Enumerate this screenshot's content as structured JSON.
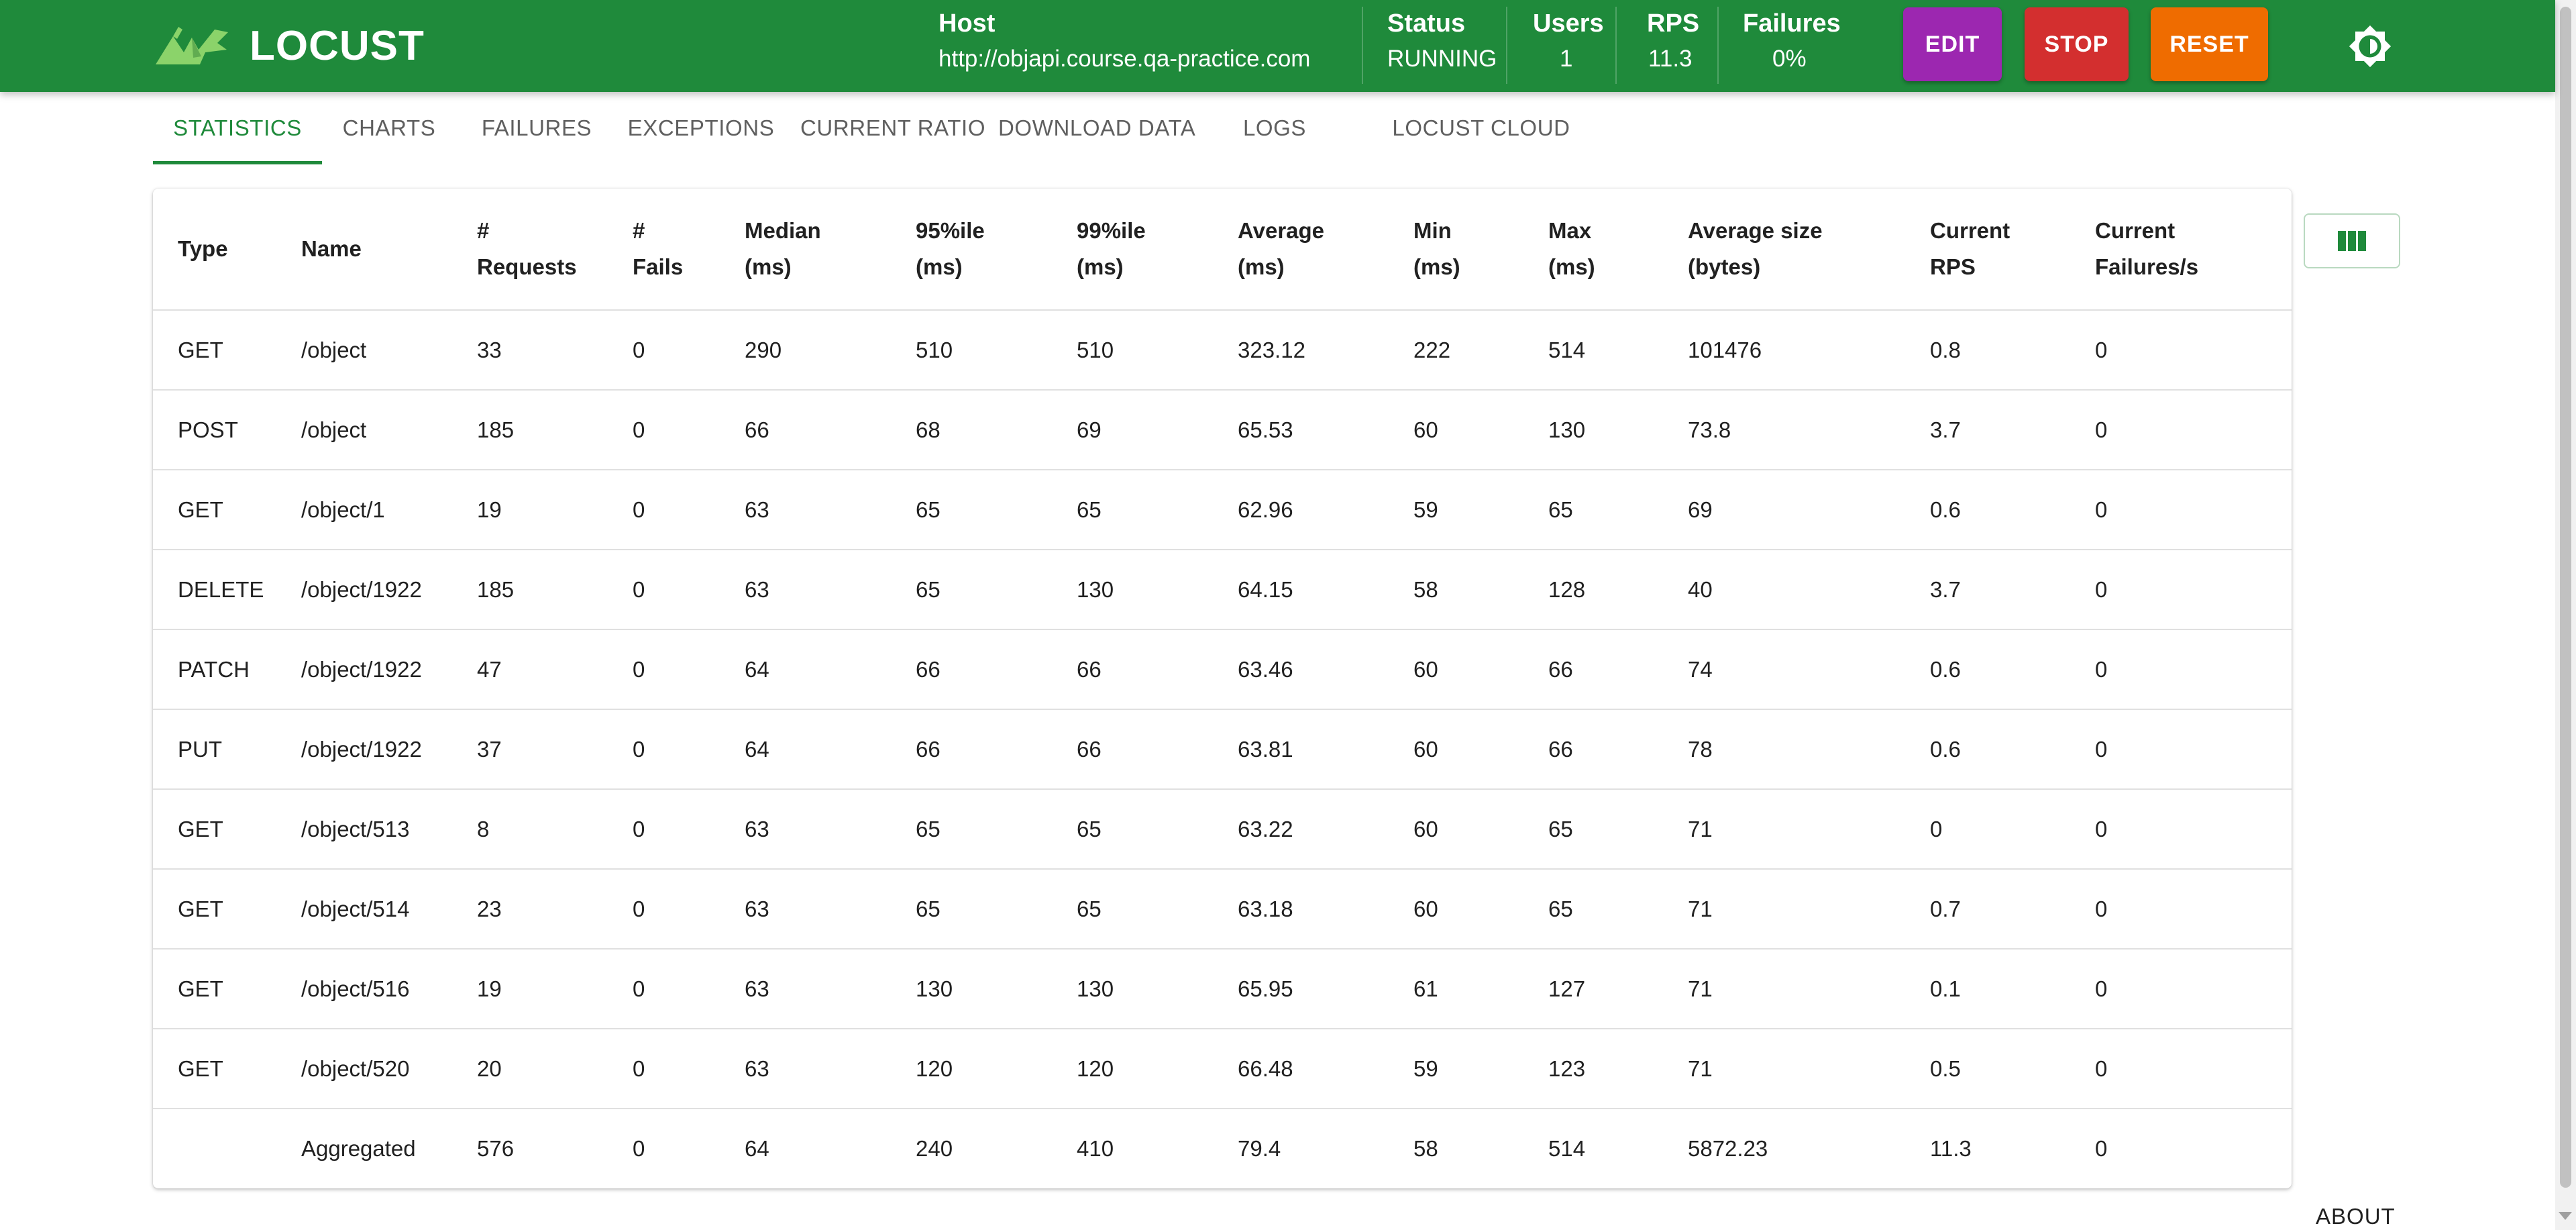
{
  "brand": {
    "name": "LOCUST"
  },
  "header": {
    "host_label": "Host",
    "host_value": "http://objapi.course.qa-practice.com",
    "status_label": "Status",
    "status_value": "RUNNING",
    "users_label": "Users",
    "users_value": "1",
    "rps_label": "RPS",
    "rps_value": "11.3",
    "failures_label": "Failures",
    "failures_value": "0%",
    "edit_label": "EDIT",
    "stop_label": "STOP",
    "reset_label": "RESET",
    "theme_icon": "brightness-icon"
  },
  "colors": {
    "appbar": "#1f8a3b",
    "edit": "#9c27b0",
    "stop": "#d32f2f",
    "reset": "#ef6c00"
  },
  "tabs": [
    {
      "label": "STATISTICS",
      "active": true
    },
    {
      "label": "CHARTS"
    },
    {
      "label": "FAILURES"
    },
    {
      "label": "EXCEPTIONS"
    },
    {
      "label": "CURRENT RATIO"
    },
    {
      "label": "DOWNLOAD DATA"
    },
    {
      "label": "LOGS"
    },
    {
      "label": "LOCUST CLOUD"
    }
  ],
  "table": {
    "headers": [
      [
        "Type"
      ],
      [
        "Name"
      ],
      [
        "#",
        "Requests"
      ],
      [
        "#",
        "Fails"
      ],
      [
        "Median",
        "(ms)"
      ],
      [
        "95%ile",
        "(ms)"
      ],
      [
        "99%ile",
        "(ms)"
      ],
      [
        "Average",
        "(ms)"
      ],
      [
        "Min",
        "(ms)"
      ],
      [
        "Max",
        "(ms)"
      ],
      [
        "Average size",
        "(bytes)"
      ],
      [
        "Current",
        "RPS"
      ],
      [
        "Current",
        "Failures/s"
      ]
    ],
    "rows": [
      [
        "GET",
        "/object",
        "33",
        "0",
        "290",
        "510",
        "510",
        "323.12",
        "222",
        "514",
        "101476",
        "0.8",
        "0"
      ],
      [
        "POST",
        "/object",
        "185",
        "0",
        "66",
        "68",
        "69",
        "65.53",
        "60",
        "130",
        "73.8",
        "3.7",
        "0"
      ],
      [
        "GET",
        "/object/1",
        "19",
        "0",
        "63",
        "65",
        "65",
        "62.96",
        "59",
        "65",
        "69",
        "0.6",
        "0"
      ],
      [
        "DELETE",
        "/object/1922",
        "185",
        "0",
        "63",
        "65",
        "130",
        "64.15",
        "58",
        "128",
        "40",
        "3.7",
        "0"
      ],
      [
        "PATCH",
        "/object/1922",
        "47",
        "0",
        "64",
        "66",
        "66",
        "63.46",
        "60",
        "66",
        "74",
        "0.6",
        "0"
      ],
      [
        "PUT",
        "/object/1922",
        "37",
        "0",
        "64",
        "66",
        "66",
        "63.81",
        "60",
        "66",
        "78",
        "0.6",
        "0"
      ],
      [
        "GET",
        "/object/513",
        "8",
        "0",
        "63",
        "65",
        "65",
        "63.22",
        "60",
        "65",
        "71",
        "0",
        "0"
      ],
      [
        "GET",
        "/object/514",
        "23",
        "0",
        "63",
        "65",
        "65",
        "63.18",
        "60",
        "65",
        "71",
        "0.7",
        "0"
      ],
      [
        "GET",
        "/object/516",
        "19",
        "0",
        "63",
        "130",
        "130",
        "65.95",
        "61",
        "127",
        "71",
        "0.1",
        "0"
      ],
      [
        "GET",
        "/object/520",
        "20",
        "0",
        "63",
        "120",
        "120",
        "66.48",
        "59",
        "123",
        "71",
        "0.5",
        "0"
      ],
      [
        "",
        "Aggregated",
        "576",
        "0",
        "64",
        "240",
        "410",
        "79.4",
        "58",
        "514",
        "5872.23",
        "11.3",
        "0"
      ]
    ],
    "columns_button_icon": "view-column-icon"
  },
  "footer": {
    "about_label": "ABOUT"
  }
}
